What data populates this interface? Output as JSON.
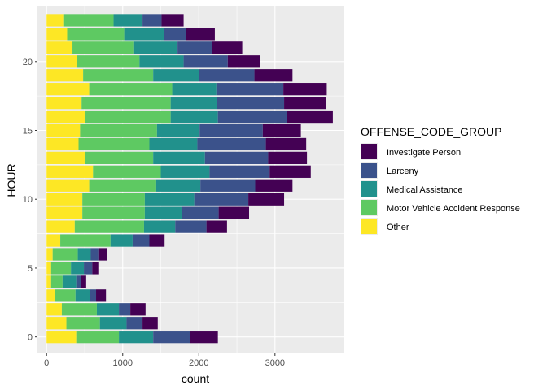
{
  "chart_data": {
    "type": "bar",
    "orientation": "horizontal",
    "stacked": true,
    "xlabel": "count",
    "ylabel": "HOUR",
    "xlim": [
      -120,
      3900
    ],
    "ylim": [
      -1.2,
      24
    ],
    "x_ticks": [
      0,
      1000,
      2000,
      3000
    ],
    "x_tick_labels": [
      "0",
      "1000",
      "2000",
      "3000"
    ],
    "y_ticks": [
      0,
      5,
      10,
      15,
      20
    ],
    "y_tick_labels": [
      "0",
      "5",
      "10",
      "15",
      "20"
    ],
    "grid": true,
    "legend_position": "right",
    "legend_title": "OFFENSE_CODE_GROUP",
    "categories": [
      0,
      1,
      2,
      3,
      4,
      5,
      6,
      7,
      8,
      9,
      10,
      11,
      12,
      13,
      14,
      15,
      16,
      17,
      18,
      19,
      20,
      21,
      22,
      23
    ],
    "series": [
      {
        "name": "Other",
        "color": "#FDE725",
        "values": [
          390,
          260,
          200,
          110,
          60,
          60,
          80,
          180,
          370,
          470,
          470,
          560,
          610,
          500,
          420,
          440,
          500,
          460,
          560,
          480,
          400,
          340,
          270,
          230
        ]
      },
      {
        "name": "Motor Vehicle Accident Response",
        "color": "#5EC962",
        "values": [
          560,
          440,
          460,
          270,
          150,
          260,
          330,
          660,
          910,
          820,
          820,
          880,
          890,
          900,
          930,
          1010,
          1130,
          1170,
          1090,
          920,
          820,
          810,
          750,
          650
        ]
      },
      {
        "name": "Medical Assistance",
        "color": "#21918C",
        "values": [
          450,
          350,
          290,
          190,
          180,
          170,
          170,
          290,
          410,
          490,
          650,
          580,
          640,
          680,
          630,
          560,
          620,
          610,
          580,
          600,
          580,
          570,
          520,
          380
        ]
      },
      {
        "name": "Larceny",
        "color": "#3B528B",
        "values": [
          490,
          210,
          150,
          80,
          60,
          110,
          110,
          220,
          410,
          480,
          710,
          720,
          790,
          830,
          900,
          830,
          910,
          880,
          880,
          730,
          580,
          450,
          290,
          250
        ]
      },
      {
        "name": "Investigate Person",
        "color": "#440154",
        "values": [
          360,
          200,
          200,
          130,
          70,
          90,
          100,
          200,
          270,
          400,
          470,
          490,
          540,
          510,
          530,
          500,
          600,
          550,
          570,
          500,
          420,
          400,
          380,
          290
        ]
      }
    ],
    "legend_order": [
      "Investigate Person",
      "Larceny",
      "Medical Assistance",
      "Motor Vehicle Accident Response",
      "Other"
    ]
  }
}
